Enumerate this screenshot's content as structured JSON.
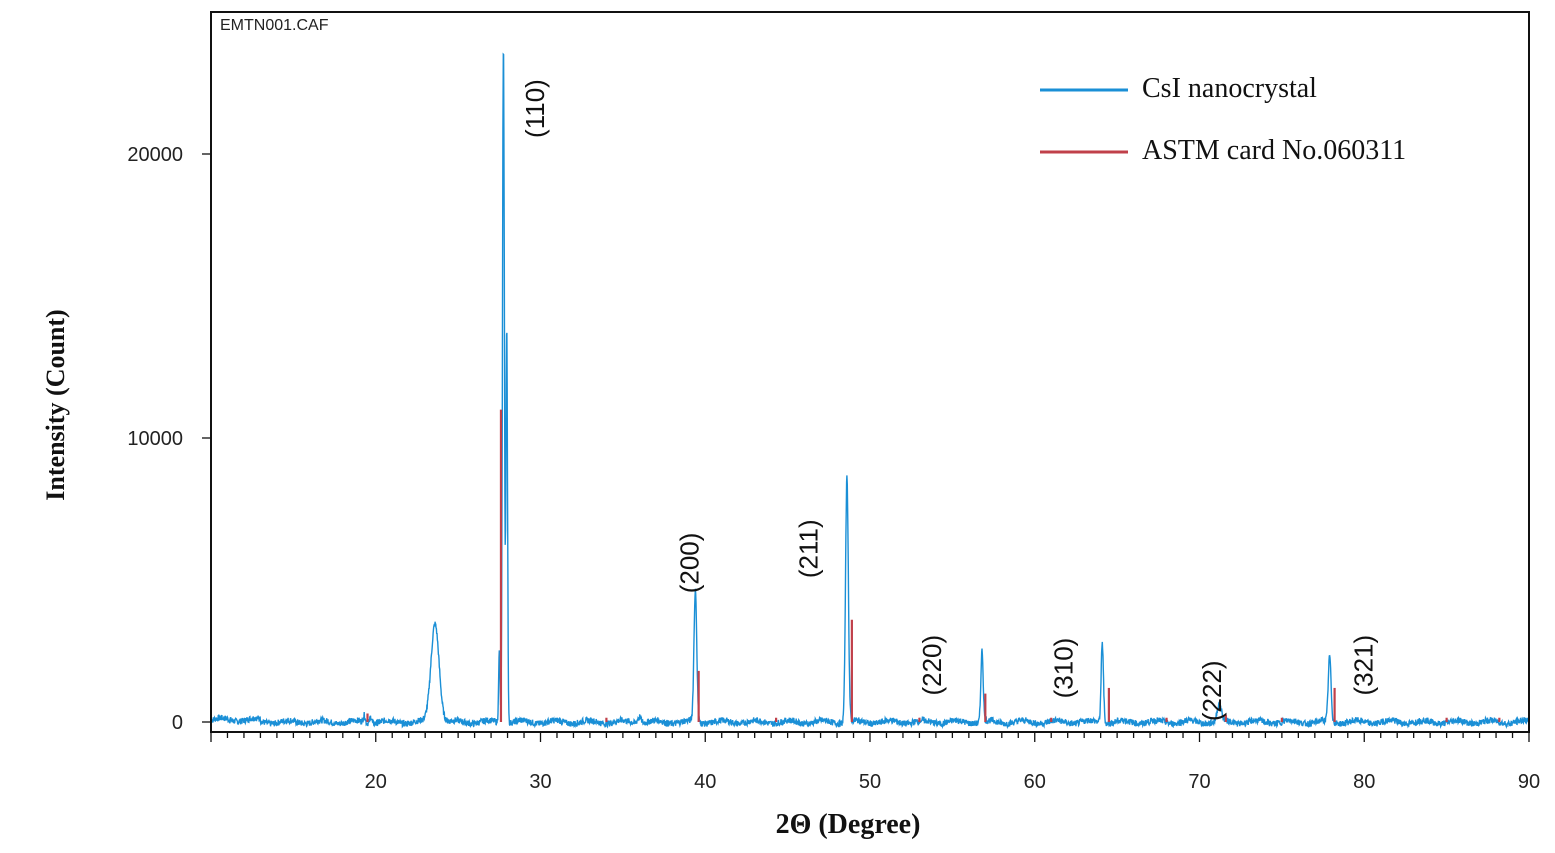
{
  "chart_data": {
    "type": "line",
    "file_label": "EMTN001.CAF",
    "xlabel": "2Θ (Degree)",
    "ylabel": "Intensity (Count)",
    "xlim": [
      10,
      90
    ],
    "ylim": [
      -400,
      25000
    ],
    "x_ticks": [
      20,
      30,
      40,
      50,
      60,
      70,
      80,
      90
    ],
    "y_ticks": [
      0,
      10000,
      20000
    ],
    "legend": {
      "position": "top-right"
    },
    "series": [
      {
        "name": "CsI nanocrystal",
        "color": "#1a8fd6",
        "kind": "pattern",
        "baseline": 0,
        "peaks": [
          {
            "x": 19.3,
            "y": 250,
            "w": 0.08
          },
          {
            "x": 19.7,
            "y": 250,
            "w": 0.08
          },
          {
            "x": 23.6,
            "y": 3500,
            "w": 0.35
          },
          {
            "x": 27.5,
            "y": 2500,
            "w": 0.06
          },
          {
            "x": 27.75,
            "y": 24000,
            "w": 0.08
          },
          {
            "x": 27.95,
            "y": 14000,
            "w": 0.07
          },
          {
            "x": 36.0,
            "y": 250,
            "w": 0.15
          },
          {
            "x": 39.4,
            "y": 4600,
            "w": 0.12
          },
          {
            "x": 48.6,
            "y": 8600,
            "w": 0.12
          },
          {
            "x": 56.8,
            "y": 2500,
            "w": 0.1
          },
          {
            "x": 64.1,
            "y": 2800,
            "w": 0.1
          },
          {
            "x": 71.2,
            "y": 600,
            "w": 0.18
          },
          {
            "x": 77.9,
            "y": 2300,
            "w": 0.12
          }
        ]
      },
      {
        "name": "ASTM card No.060311",
        "color": "#c0404a",
        "kind": "sticks",
        "points": [
          {
            "x": 19.5,
            "y": 300
          },
          {
            "x": 27.6,
            "y": 11000
          },
          {
            "x": 34.0,
            "y": 150
          },
          {
            "x": 39.6,
            "y": 1800
          },
          {
            "x": 44.3,
            "y": 150
          },
          {
            "x": 48.9,
            "y": 3600
          },
          {
            "x": 53.0,
            "y": 150
          },
          {
            "x": 57.0,
            "y": 1000
          },
          {
            "x": 61.0,
            "y": 150
          },
          {
            "x": 64.5,
            "y": 1200
          },
          {
            "x": 68.0,
            "y": 150
          },
          {
            "x": 71.6,
            "y": 250
          },
          {
            "x": 75.0,
            "y": 150
          },
          {
            "x": 78.2,
            "y": 1200
          },
          {
            "x": 85.0,
            "y": 150
          },
          {
            "x": 88.2,
            "y": 150
          }
        ]
      }
    ],
    "annotations": [
      {
        "text": "(110)",
        "x": 30.2,
        "y": 21600
      },
      {
        "text": "(200)",
        "x": 39.6,
        "y": 5600
      },
      {
        "text": "(211)",
        "x": 46.8,
        "y": 6100
      },
      {
        "text": "(220)",
        "x": 54.3,
        "y": 2000
      },
      {
        "text": "(310)",
        "x": 62.3,
        "y": 1900
      },
      {
        "text": "(222)",
        "x": 71.3,
        "y": 1100
      },
      {
        "text": "(321)",
        "x": 80.5,
        "y": 2000
      }
    ]
  }
}
